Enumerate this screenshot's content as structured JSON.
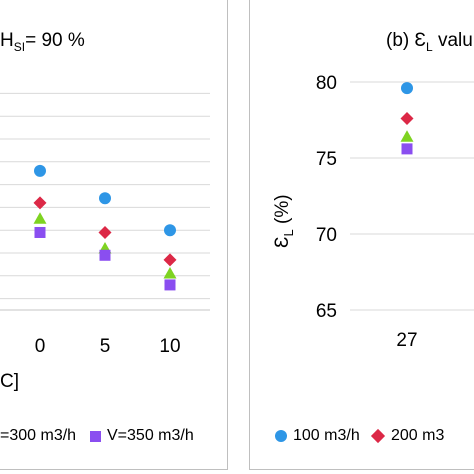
{
  "colors": {
    "v100": "#2e96e6",
    "v200": "#dc2846",
    "v300": "#7ed321",
    "v350": "#8a4ef0",
    "grid": "#d9d9d9",
    "border": "#bfbfbf"
  },
  "chart_data": [
    {
      "panel": "a",
      "type": "scatter",
      "title_prefix": "H",
      "title_sub": "SI",
      "title_suffix": "= 90 %",
      "xlabel_fragment": "C]",
      "categories": [
        "0",
        "5",
        "10"
      ],
      "ylim": [
        68.5,
        78.5
      ],
      "grid": true,
      "legend_position": "bottom",
      "series": [
        {
          "key": "v100",
          "marker": "circle",
          "values": [
            74.6,
            73.4,
            72.0
          ]
        },
        {
          "key": "v200",
          "marker": "diamond",
          "values": [
            73.2,
            71.9,
            70.7
          ]
        },
        {
          "key": "v300",
          "marker": "triangle",
          "values": [
            72.5,
            71.2,
            70.1
          ]
        },
        {
          "key": "v350",
          "marker": "square",
          "values": [
            71.9,
            70.9,
            69.6
          ]
        }
      ],
      "legend": [
        {
          "key": "v300",
          "marker": "triangle",
          "label": "=300 m3/h"
        },
        {
          "key": "v350",
          "marker": "square",
          "label": "V=350 m3/h"
        }
      ]
    },
    {
      "panel": "b",
      "type": "scatter",
      "title_prefix": "(b) Ɛ",
      "title_sub": "L",
      "title_suffix": " valu",
      "ylabel_prefix": "Ɛ",
      "ylabel_sub": "L",
      "ylabel_suffix": " (%)",
      "categories": [
        "27"
      ],
      "yticks": [
        "65",
        "70",
        "75",
        "80"
      ],
      "ylim": [
        65,
        80
      ],
      "grid": true,
      "legend_position": "bottom",
      "series": [
        {
          "key": "v100",
          "marker": "circle",
          "values": [
            79.6
          ]
        },
        {
          "key": "v200",
          "marker": "diamond",
          "values": [
            77.6
          ]
        },
        {
          "key": "v300",
          "marker": "triangle",
          "values": [
            76.4
          ]
        },
        {
          "key": "v350",
          "marker": "square",
          "values": [
            75.6
          ]
        }
      ],
      "legend": [
        {
          "key": "v100",
          "marker": "circle",
          "label": "100 m3/h"
        },
        {
          "key": "v200",
          "marker": "diamond",
          "label": "200 m3"
        }
      ]
    }
  ]
}
